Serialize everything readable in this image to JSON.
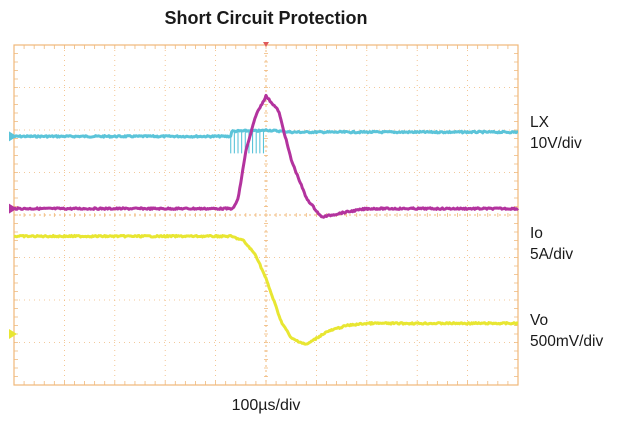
{
  "chart_data": {
    "type": "line",
    "title": "Short Circuit Protection",
    "xlabel": "100µs/div",
    "ylabel": "",
    "grid": true,
    "x_divisions": 10,
    "y_divisions": 8,
    "series": [
      {
        "name": "LX",
        "scale": "10V/div",
        "color": "#5bc4d9",
        "ground_div": 2.15,
        "x": [
          0,
          4.3,
          4.32,
          4.6,
          4.9,
          5.0,
          5.5,
          10
        ],
        "y": [
          2.15,
          2.15,
          2.03,
          2.02,
          2.02,
          2.0,
          2.05,
          2.05
        ],
        "spikes": {
          "x_start": 4.3,
          "x_end": 4.95,
          "count": 10,
          "peak_div": 3.35,
          "peak_div_min": 2.55
        }
      },
      {
        "name": "Io",
        "scale": "5A/div",
        "color": "#b3339e",
        "ground_div": 3.85,
        "x": [
          0,
          4.35,
          4.45,
          4.6,
          4.8,
          5.0,
          5.25,
          5.5,
          5.8,
          6.1,
          6.5,
          7.0,
          10
        ],
        "y": [
          3.85,
          3.85,
          3.6,
          2.5,
          1.65,
          1.2,
          1.55,
          2.7,
          3.6,
          4.05,
          3.95,
          3.85,
          3.85
        ]
      },
      {
        "name": "Vo",
        "scale": "500mV/div",
        "color": "#e8e632",
        "ground_div": 6.8,
        "x": [
          0,
          4.3,
          4.55,
          4.8,
          5.0,
          5.15,
          5.3,
          5.5,
          5.8,
          6.2,
          6.6,
          7.0,
          10
        ],
        "y": [
          4.5,
          4.5,
          4.6,
          4.95,
          5.5,
          6.0,
          6.5,
          6.9,
          7.05,
          6.75,
          6.6,
          6.55,
          6.55
        ]
      }
    ]
  }
}
